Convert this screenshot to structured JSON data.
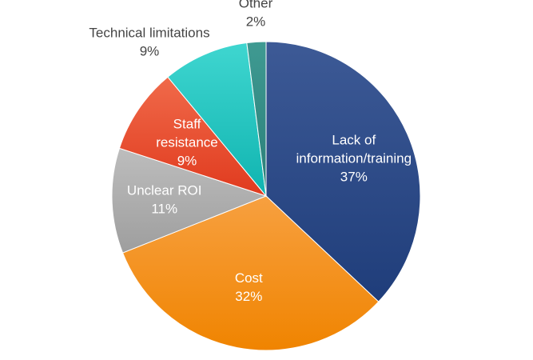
{
  "chart_data": {
    "type": "pie",
    "title": "",
    "start_angle_deg": 0,
    "direction": "clockwise",
    "slices": [
      {
        "label_lines": [
          "Lack of",
          "information/training"
        ],
        "pct_label": "37%",
        "value": 37,
        "color": "#1f3d7a",
        "color_light": "#3d5a96",
        "label_color": "#ffffff",
        "label_pos": "inside"
      },
      {
        "label_lines": [
          "Cost"
        ],
        "pct_label": "32%",
        "value": 32,
        "color": "#f08400",
        "color_light": "#f7a040",
        "label_color": "#ffffff",
        "label_pos": "inside"
      },
      {
        "label_lines": [
          "Unclear ROI"
        ],
        "pct_label": "11%",
        "value": 11,
        "color": "#9e9e9e",
        "color_light": "#bdbdbd",
        "label_color": "#ffffff",
        "label_pos": "inside"
      },
      {
        "label_lines": [
          "Staff",
          "resistance"
        ],
        "pct_label": "9%",
        "value": 9,
        "color": "#e03a1e",
        "color_light": "#f06a4a",
        "label_color": "#ffffff",
        "label_pos": "inside"
      },
      {
        "label_lines": [
          "Technical limitations"
        ],
        "pct_label": "9%",
        "value": 9,
        "color": "#10b4b0",
        "color_light": "#3fd6d0",
        "label_color": "#444444",
        "label_pos": "outside"
      },
      {
        "label_lines": [
          "Other"
        ],
        "pct_label": "2%",
        "value": 2,
        "color": "#2a7f78",
        "color_light": "#3f9a92",
        "label_color": "#444444",
        "label_pos": "outside"
      }
    ]
  }
}
